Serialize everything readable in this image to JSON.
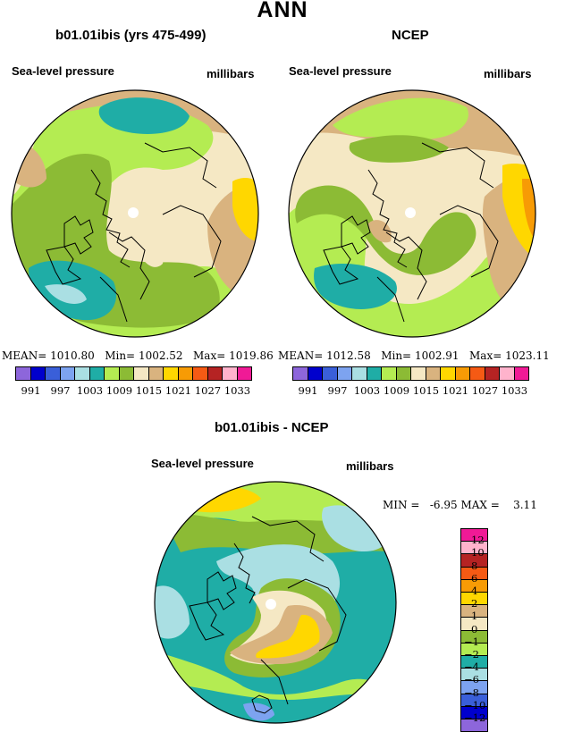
{
  "title": "ANN",
  "panels": [
    {
      "heading": "b01.01ibis (yrs 475-499)",
      "field": "Sea-level pressure",
      "units": "millibars",
      "stats": {
        "mean_label": "MEAN=",
        "mean": "1010.80",
        "min_label": "Min=",
        "min": "1002.52",
        "max_label": "Max=",
        "max": "1019.86"
      }
    },
    {
      "heading": "NCEP",
      "field": "Sea-level pressure",
      "units": "millibars",
      "stats": {
        "mean_label": "MEAN=",
        "mean": "1012.58",
        "min_label": "Min=",
        "min": "1002.91",
        "max_label": "Max=",
        "max": "1023.11"
      }
    }
  ],
  "top_colorbar": {
    "colors": [
      "#8d66db",
      "#0000cd",
      "#3a5fd9",
      "#7da3f0",
      "#aadfe3",
      "#1fada6",
      "#b4ec52",
      "#8cbb35",
      "#f5e8c4",
      "#d9b37f",
      "#ffd700",
      "#f79b05",
      "#f55a14",
      "#b52323",
      "#ffb3cc",
      "#f01a96"
    ],
    "labels": [
      "991",
      "997",
      "1003",
      "1009",
      "1015",
      "1021",
      "1027",
      "1033"
    ]
  },
  "diff_panel": {
    "heading": "b01.01ibis - NCEP",
    "field": "Sea-level pressure",
    "units": "millibars",
    "min_label": "MIN =",
    "min": "-6.95",
    "max_label": "MAX =",
    "max": "3.11"
  },
  "diff_colorbar": {
    "colors": [
      "#f01a96",
      "#ffb3cc",
      "#b52323",
      "#f55a14",
      "#f79b05",
      "#ffd700",
      "#d9b37f",
      "#f5e8c4",
      "#8cbb35",
      "#b4ec52",
      "#1fada6",
      "#aadfe3",
      "#7da3f0",
      "#3a5fd9",
      "#0000cd",
      "#8d66db"
    ],
    "labels": [
      "12",
      "10",
      "8",
      "6",
      "4",
      "2",
      "1",
      "0",
      "−1",
      "−2",
      "−4",
      "−6",
      "−8",
      "−10",
      "−12"
    ]
  },
  "map_colors": {
    "tan": "#d9b37f",
    "cream": "#f5e8c4",
    "lightgreen": "#b4ec52",
    "green": "#8cbb35",
    "teal": "#1fada6",
    "lightblue": "#aadfe3",
    "yellow": "#ffd700",
    "orange": "#f79b05",
    "blue": "#7da3f0"
  }
}
